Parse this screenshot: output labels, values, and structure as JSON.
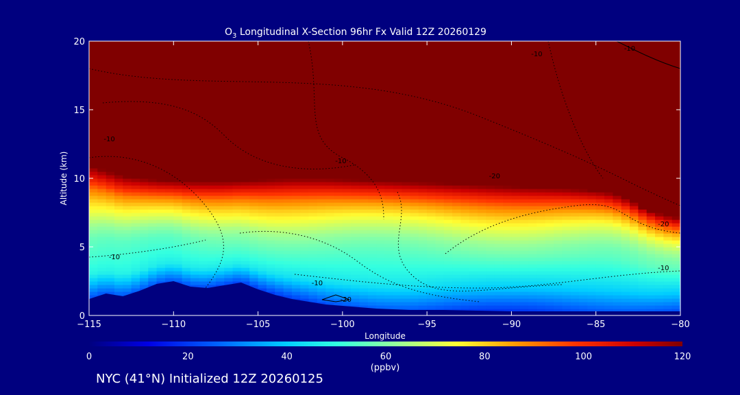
{
  "chart_data": {
    "type": "heatmap",
    "title_species": "O",
    "title_subscript": "3",
    "title_rest": " Longitudinal X-Section 96hr  Fx Valid 12Z 20260129",
    "xlabel": "Longitude",
    "ylabel": "Altitude (km)",
    "xlim": [
      -115,
      -80
    ],
    "ylim": [
      0,
      20
    ],
    "xticks": [
      -115,
      -110,
      -105,
      -100,
      -95,
      -90,
      -85,
      -80
    ],
    "xtick_labels": [
      "−115",
      "−110",
      "−105",
      "−100",
      "−95",
      "−90",
      "−85",
      "−80"
    ],
    "yticks": [
      0,
      5,
      10,
      15,
      20
    ],
    "ytick_labels": [
      "0",
      "5",
      "10",
      "15",
      "20"
    ],
    "colorbar": {
      "min": 0,
      "max": 120,
      "ticks": [
        0,
        20,
        40,
        60,
        80,
        100,
        120
      ],
      "tick_labels": [
        "0",
        "20",
        "40",
        "60",
        "80",
        "100",
        "120"
      ],
      "units": "(ppbv)"
    },
    "terrain_km": [
      [
        -115,
        1.2
      ],
      [
        -114,
        1.6
      ],
      [
        -113,
        1.4
      ],
      [
        -112,
        1.8
      ],
      [
        -111,
        2.3
      ],
      [
        -110,
        2.5
      ],
      [
        -109,
        2.1
      ],
      [
        -108,
        2.0
      ],
      [
        -107,
        2.2
      ],
      [
        -106,
        2.4
      ],
      [
        -105,
        1.9
      ],
      [
        -104,
        1.5
      ],
      [
        -103,
        1.2
      ],
      [
        -102,
        1.0
      ],
      [
        -101,
        0.8
      ],
      [
        -100,
        0.7
      ],
      [
        -99,
        0.6
      ],
      [
        -98,
        0.5
      ],
      [
        -96,
        0.4
      ],
      [
        -94,
        0.4
      ],
      [
        -92,
        0.35
      ],
      [
        -90,
        0.3
      ],
      [
        -88,
        0.3
      ],
      [
        -86,
        0.3
      ],
      [
        -84,
        0.3
      ],
      [
        -82,
        0.3
      ],
      [
        -80,
        0.3
      ]
    ],
    "tropopause_km": [
      [
        -115,
        11.0
      ],
      [
        -113,
        10.2
      ],
      [
        -111,
        9.9
      ],
      [
        -109,
        9.8
      ],
      [
        -107,
        9.8
      ],
      [
        -105,
        9.9
      ],
      [
        -103,
        10.0
      ],
      [
        -101,
        10.0
      ],
      [
        -99,
        9.9
      ],
      [
        -97,
        9.8
      ],
      [
        -95,
        9.7
      ],
      [
        -93,
        9.6
      ],
      [
        -91,
        9.5
      ],
      [
        -89,
        9.4
      ],
      [
        -87,
        9.3
      ],
      [
        -85,
        9.1
      ],
      [
        -84,
        8.9
      ],
      [
        -83,
        8.4
      ],
      [
        -82,
        7.7
      ],
      [
        -81,
        7.3
      ],
      [
        -80,
        7.1
      ]
    ],
    "ozone_profile": {
      "altitude_km": [
        0,
        1,
        2,
        3,
        4,
        5,
        6,
        7,
        8,
        9,
        10,
        11
      ],
      "ppbv_west": [
        22,
        35,
        48,
        52,
        55,
        58,
        64,
        72,
        80,
        90,
        105,
        120
      ],
      "ppbv_east": [
        22,
        30,
        38,
        44,
        50,
        56,
        60,
        66,
        74,
        85,
        100,
        120
      ]
    },
    "contour_labels": [
      {
        "lon": -88.5,
        "alt": 18.9,
        "text": "-10"
      },
      {
        "lon": -83.0,
        "alt": 19.3,
        "text": "-10"
      },
      {
        "lon": -113.8,
        "alt": 12.7,
        "text": "-10"
      },
      {
        "lon": -100.1,
        "alt": 11.1,
        "text": "-10"
      },
      {
        "lon": -91.0,
        "alt": 10.0,
        "text": "-20"
      },
      {
        "lon": -81.0,
        "alt": 6.5,
        "text": "-20"
      },
      {
        "lon": -113.5,
        "alt": 4.1,
        "text": "-10"
      },
      {
        "lon": -101.5,
        "alt": 2.2,
        "text": "-10"
      },
      {
        "lon": -81.0,
        "alt": 3.3,
        "text": "-10"
      },
      {
        "lon": -99.8,
        "alt": 1.0,
        "text": "-20"
      }
    ],
    "footer": "NYC (41°N) Initialized 12Z 20260125"
  },
  "colors": {
    "background": "#00007f",
    "frame": "#ffffff",
    "contour": "#000000",
    "terrain": "#00007f"
  }
}
